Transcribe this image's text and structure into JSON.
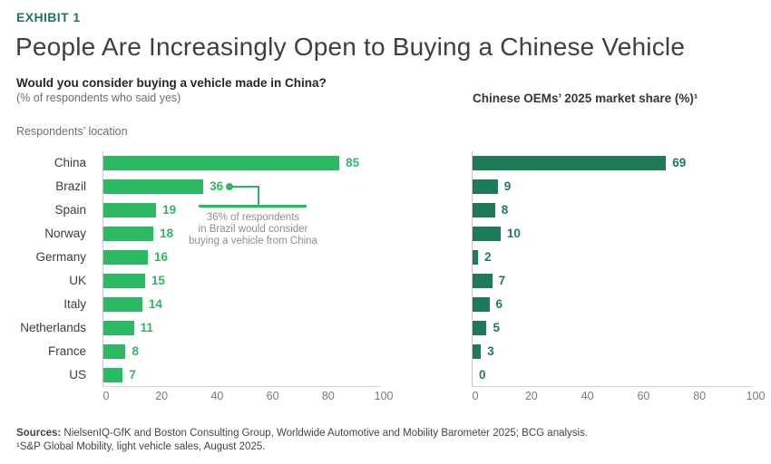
{
  "header": {
    "exhibit_label": "EXHIBIT 1",
    "title": "People Are Increasingly Open to Buying a Chinese Vehicle"
  },
  "left_panel": {
    "question": "Would you consider buying a vehicle made in China?",
    "question_sub": "(% of respondents who said yes)",
    "axis_note": "Respondents’ location"
  },
  "right_panel": {
    "title": "Chinese OEMs’ 2025 market share (%)¹"
  },
  "annotation": {
    "line1": "36% of respondents",
    "line2": "in Brazil would consider",
    "line3": "buying a vehicle from China"
  },
  "footer": {
    "sources_label": "Sources:",
    "sources_text": " NielsenIQ-GfK and Boston Consulting Group, Worldwide Automotive and Mobility Barometer 2025; BCG analysis.",
    "footnote": "¹S&P Global Mobility, light vehicle sales, August 2025."
  },
  "colors": {
    "bright_green": "#2EB864",
    "dark_green": "#1F7A58",
    "exhibit_green": "#1E7A52"
  },
  "chart_data": [
    {
      "type": "bar",
      "orientation": "horizontal",
      "title": "Would you consider buying a vehicle made in China? (% of respondents who said yes)",
      "categories": [
        "China",
        "Brazil",
        "Spain",
        "Norway",
        "Germany",
        "UK",
        "Italy",
        "Netherlands",
        "France",
        "US"
      ],
      "values": [
        85,
        36,
        19,
        18,
        16,
        15,
        14,
        11,
        8,
        7
      ],
      "xlim": [
        0,
        100
      ],
      "xticks": [
        0,
        20,
        40,
        60,
        80,
        100
      ],
      "bar_color": "#2EB864",
      "value_label_color": "#2EB864",
      "grid": false,
      "annotation": "36% of respondents in Brazil would consider buying a vehicle from China"
    },
    {
      "type": "bar",
      "orientation": "horizontal",
      "title": "Chinese OEMs’ 2025 market share (%)",
      "categories": [
        "China",
        "Brazil",
        "Spain",
        "Norway",
        "Germany",
        "UK",
        "Italy",
        "Netherlands",
        "France",
        "US"
      ],
      "values": [
        69,
        9,
        8,
        10,
        2,
        7,
        6,
        5,
        3,
        0
      ],
      "xlim": [
        0,
        100
      ],
      "xticks": [
        0,
        20,
        40,
        60,
        80,
        100
      ],
      "bar_color": "#1F7A58",
      "value_label_color": "#1F7A58",
      "grid": false
    }
  ]
}
